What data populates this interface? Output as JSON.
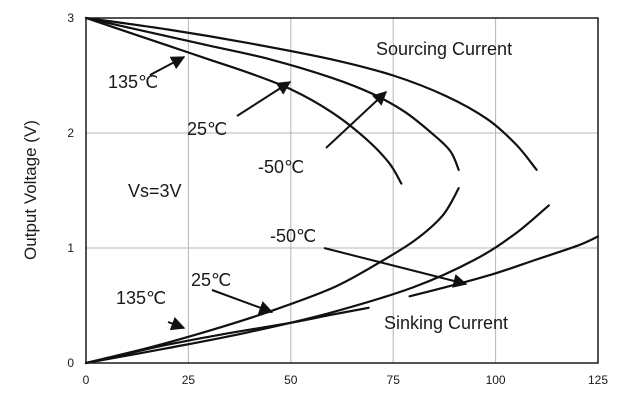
{
  "chart_data": {
    "type": "line",
    "xlim": [
      0,
      125
    ],
    "ylim": [
      0,
      3
    ],
    "xticks": [
      "0",
      "25",
      "50",
      "75",
      "100",
      "125"
    ],
    "yticks": [
      "0",
      "1",
      "2",
      "3"
    ],
    "xlabel": "",
    "ylabel": "Output Voltage (V)",
    "grid": true,
    "series": [
      {
        "name": "135℃",
        "group": "Sourcing Current",
        "points": [
          [
            0,
            3.0
          ],
          [
            10,
            2.88
          ],
          [
            20,
            2.76
          ],
          [
            30,
            2.64
          ],
          [
            40,
            2.52
          ],
          [
            50,
            2.38
          ],
          [
            60,
            2.18
          ],
          [
            68,
            1.96
          ],
          [
            74,
            1.74
          ],
          [
            77,
            1.56
          ]
        ]
      },
      {
        "name": "25℃",
        "group": "Sourcing Current",
        "points": [
          [
            0,
            3.0
          ],
          [
            15,
            2.88
          ],
          [
            30,
            2.76
          ],
          [
            45,
            2.64
          ],
          [
            60,
            2.48
          ],
          [
            70,
            2.34
          ],
          [
            78,
            2.18
          ],
          [
            85,
            1.98
          ],
          [
            89,
            1.84
          ],
          [
            91,
            1.68
          ]
        ]
      },
      {
        "name": "-50℃",
        "group": "Sourcing Current",
        "points": [
          [
            0,
            3.0
          ],
          [
            20,
            2.9
          ],
          [
            40,
            2.78
          ],
          [
            60,
            2.64
          ],
          [
            75,
            2.5
          ],
          [
            88,
            2.32
          ],
          [
            98,
            2.12
          ],
          [
            105,
            1.9
          ],
          [
            110,
            1.68
          ]
        ]
      },
      {
        "name": "135℃",
        "group": "Sinking Current",
        "points": [
          [
            0,
            0
          ],
          [
            10,
            0.08
          ],
          [
            20,
            0.16
          ],
          [
            35,
            0.26
          ],
          [
            50,
            0.35
          ],
          [
            60,
            0.42
          ],
          [
            69,
            0.48
          ]
        ]
      },
      {
        "name": "25℃",
        "group": "Sinking Current",
        "points": [
          [
            0,
            0
          ],
          [
            15,
            0.13
          ],
          [
            30,
            0.28
          ],
          [
            45,
            0.45
          ],
          [
            60,
            0.65
          ],
          [
            70,
            0.84
          ],
          [
            80,
            1.06
          ],
          [
            87,
            1.28
          ],
          [
            91,
            1.52
          ]
        ]
      },
      {
        "name": "-50℃",
        "group": "Sinking Current",
        "points": [
          [
            0,
            0
          ],
          [
            20,
            0.13
          ],
          [
            40,
            0.27
          ],
          [
            60,
            0.44
          ],
          [
            80,
            0.66
          ],
          [
            95,
            0.9
          ],
          [
            105,
            1.13
          ],
          [
            113,
            1.37
          ]
        ]
      }
    ],
    "series_labels": [
      {
        "text": "135℃"
      },
      {
        "text": "25℃"
      },
      {
        "text": "-50℃"
      },
      {
        "text": "135℃"
      },
      {
        "text": "25℃"
      },
      {
        "text": "-50℃"
      }
    ],
    "annotations": [
      {
        "text": "Sourcing Current"
      },
      {
        "text": "Sinking Current"
      },
      {
        "text": "Vs=3V"
      }
    ],
    "extra_line": {
      "points": [
        [
          79,
          0.58
        ],
        [
          90,
          0.68
        ],
        [
          100,
          0.78
        ],
        [
          110,
          0.9
        ],
        [
          120,
          1.02
        ],
        [
          125,
          1.1
        ]
      ]
    }
  }
}
